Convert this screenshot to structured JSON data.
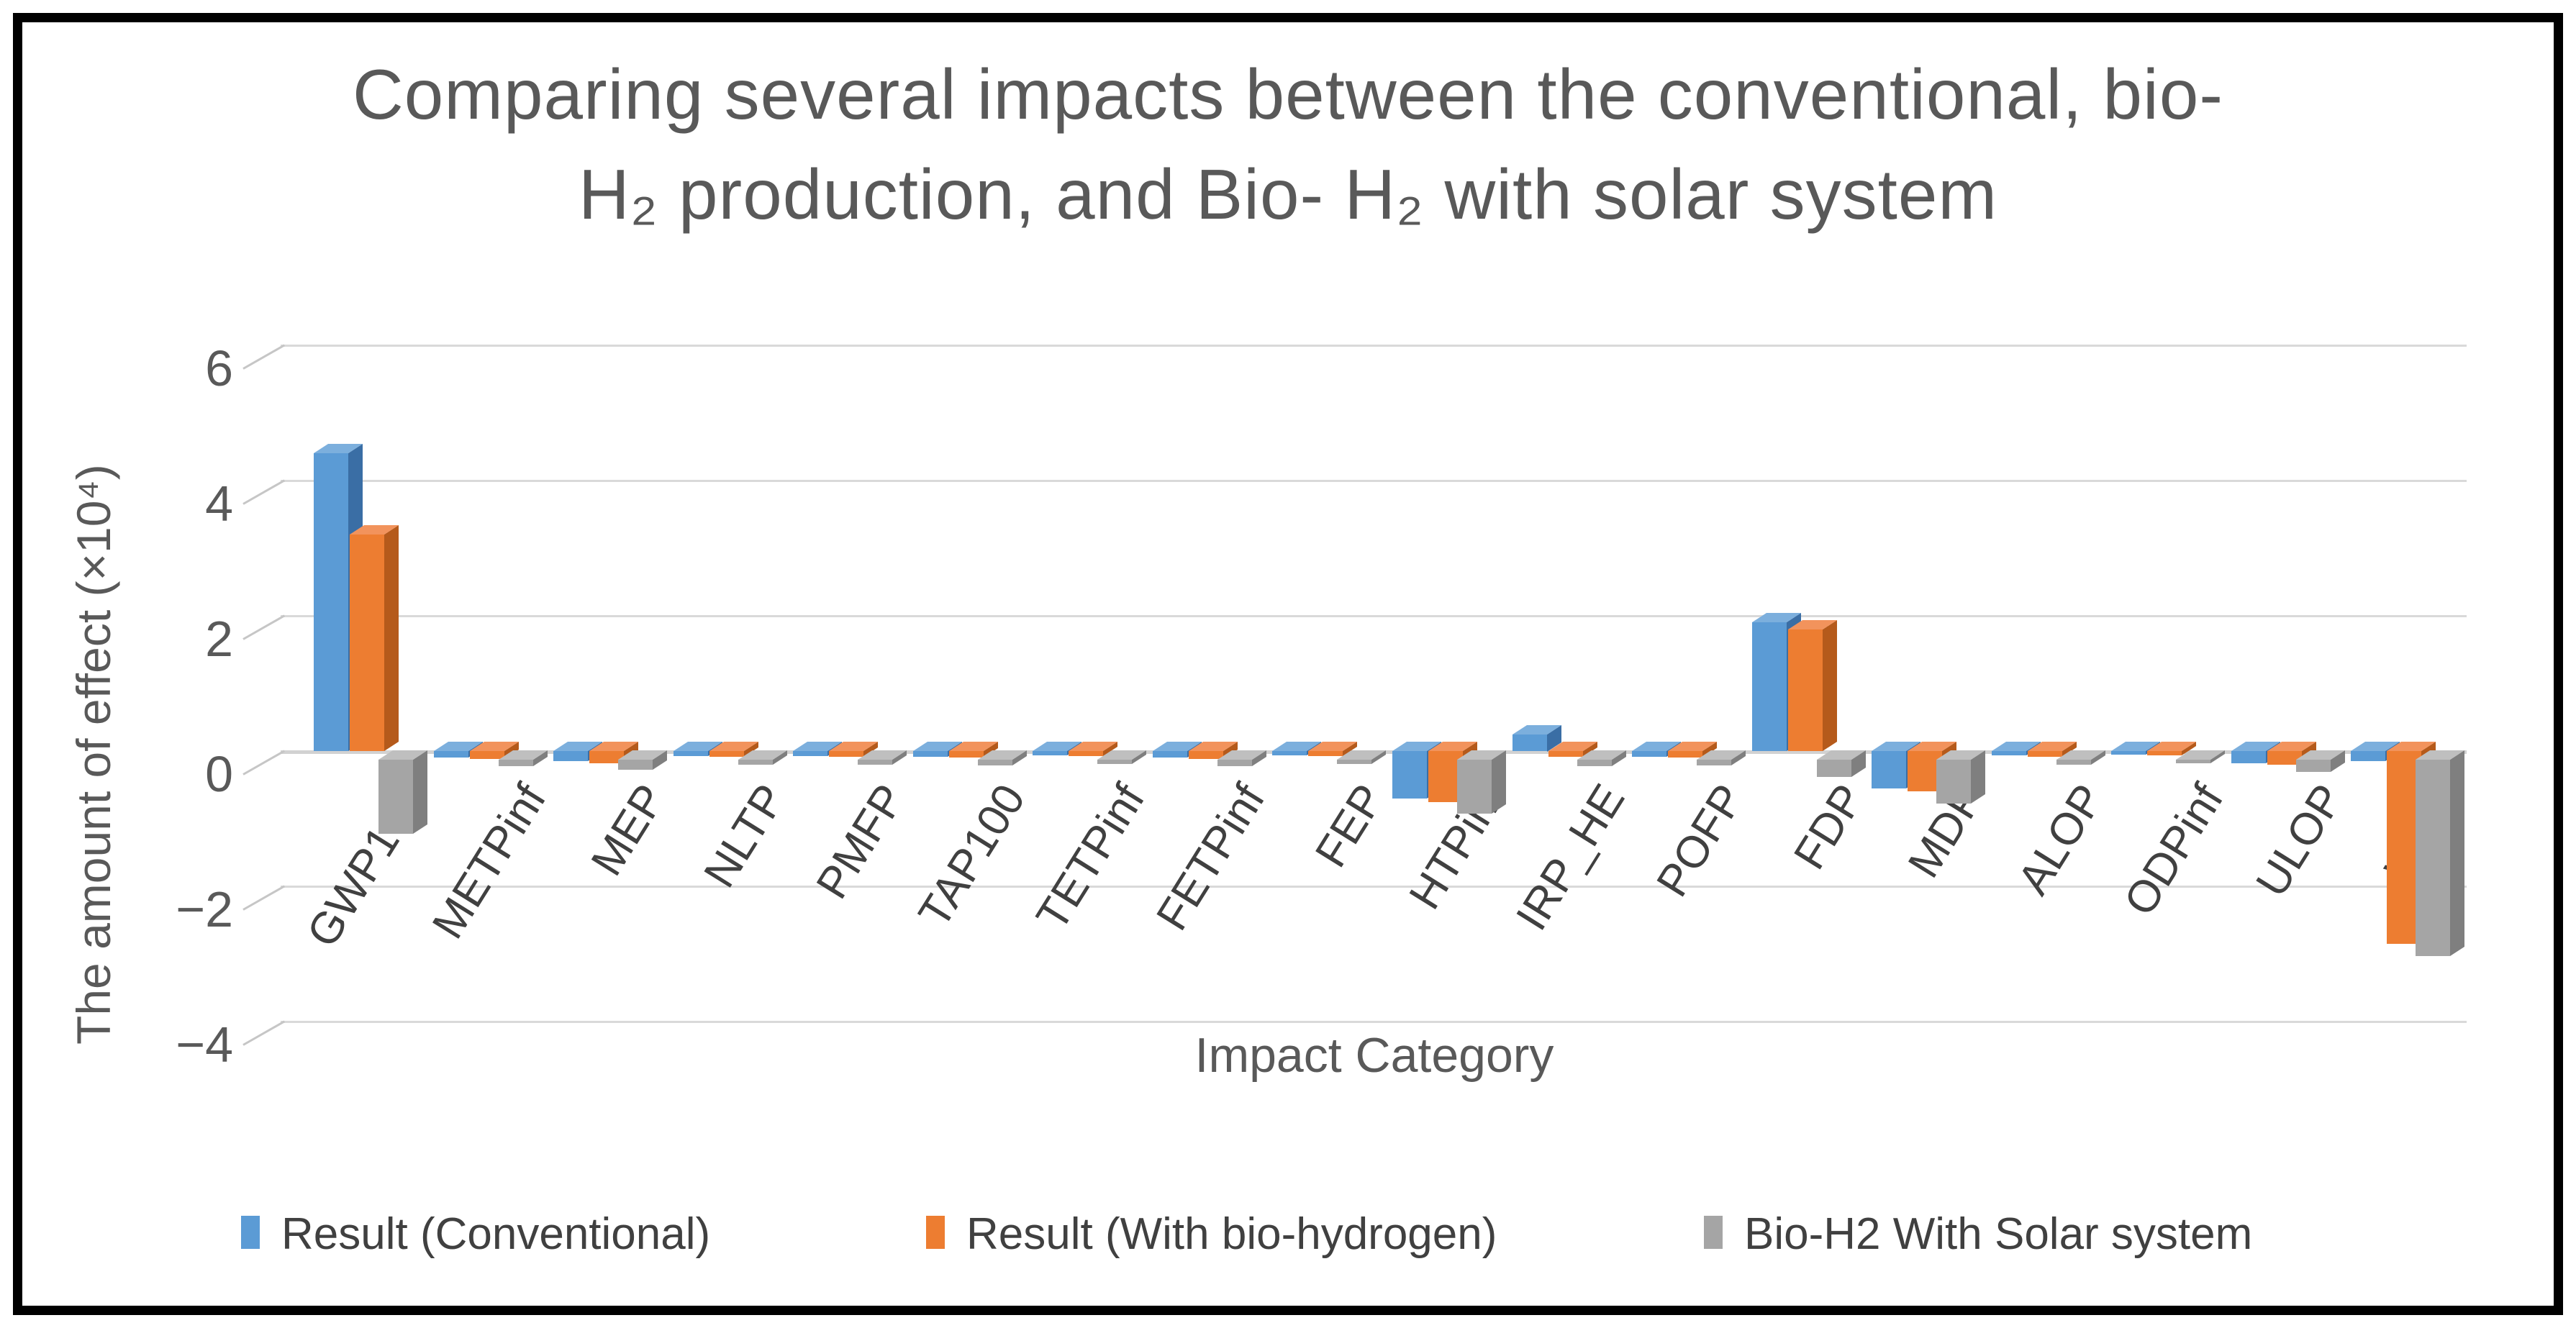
{
  "title": {
    "line1": "Comparing several impacts between the conventional, bio-",
    "line2": "H₂ production, and Bio- H₂ with solar system"
  },
  "axes": {
    "y_label": "The amount of effect (×10⁴)",
    "x_label": "Impact Category"
  },
  "colors": {
    "title_text": "#595959",
    "axis_text": "#595959",
    "category_text": "#404040",
    "gridline": "#D9D9D9",
    "frame_border": "#000000",
    "series_blue": "#5B9BD5",
    "series_orange": "#ED7D31",
    "series_gray": "#A5A5A5"
  },
  "chart_data": {
    "type": "bar",
    "style": "3d-clustered-column",
    "title": "Comparing several impacts between the conventional, bio-H₂ production, and Bio- H₂ with solar system",
    "xlabel": "Impact Category",
    "ylabel": "The amount of effect (×10⁴)",
    "value_scale_note": "all values ×10⁴",
    "ylim": [
      -4,
      7
    ],
    "grid": true,
    "legend_position": "bottom",
    "yticks": [
      {
        "value": 6,
        "label": "6"
      },
      {
        "value": 4,
        "label": "4"
      },
      {
        "value": 2,
        "label": "2"
      },
      {
        "value": 0,
        "label": "0"
      },
      {
        "value": -2,
        "label": "−2"
      },
      {
        "value": -4,
        "label": "−4"
      }
    ],
    "categories": [
      "GWP100",
      "METPinf",
      "MEP",
      "NLTP",
      "PMFP",
      "TAP100",
      "TETPinf",
      "FETPinf",
      "FEP",
      "HTPinf",
      "IRP_HE",
      "POFP",
      "FDP",
      "MDP",
      "ALOP",
      "ODPinf",
      "ULOP",
      "WDP"
    ],
    "series": [
      {
        "name": "Result (Conventional)",
        "color": "#5B9BD5",
        "side_color": "#3A6EA5",
        "top_color": "#7CAFDD",
        "values": [
          4.4,
          -0.1,
          -0.15,
          -0.07,
          -0.07,
          -0.08,
          -0.06,
          -0.1,
          -0.06,
          -0.7,
          0.25,
          -0.08,
          1.9,
          -0.55,
          -0.06,
          -0.05,
          -0.18,
          -0.15
        ]
      },
      {
        "name": "Result (With bio-hydrogen)",
        "color": "#ED7D31",
        "side_color": "#B55A1B",
        "top_color": "#F2935C",
        "values": [
          3.2,
          -0.12,
          -0.18,
          -0.09,
          -0.09,
          -0.1,
          -0.07,
          -0.12,
          -0.07,
          -0.75,
          -0.08,
          -0.1,
          1.8,
          -0.6,
          -0.08,
          -0.06,
          -0.2,
          -2.85
        ]
      },
      {
        "name": "Bio-H2 With Solar system",
        "color": "#A5A5A5",
        "side_color": "#7F7F7F",
        "top_color": "#BFBFBF",
        "values": [
          -1.1,
          -0.1,
          -0.15,
          -0.07,
          -0.07,
          -0.08,
          -0.06,
          -0.1,
          -0.06,
          -0.8,
          -0.1,
          -0.08,
          -0.25,
          -0.65,
          -0.07,
          -0.05,
          -0.18,
          -2.9
        ]
      }
    ]
  }
}
